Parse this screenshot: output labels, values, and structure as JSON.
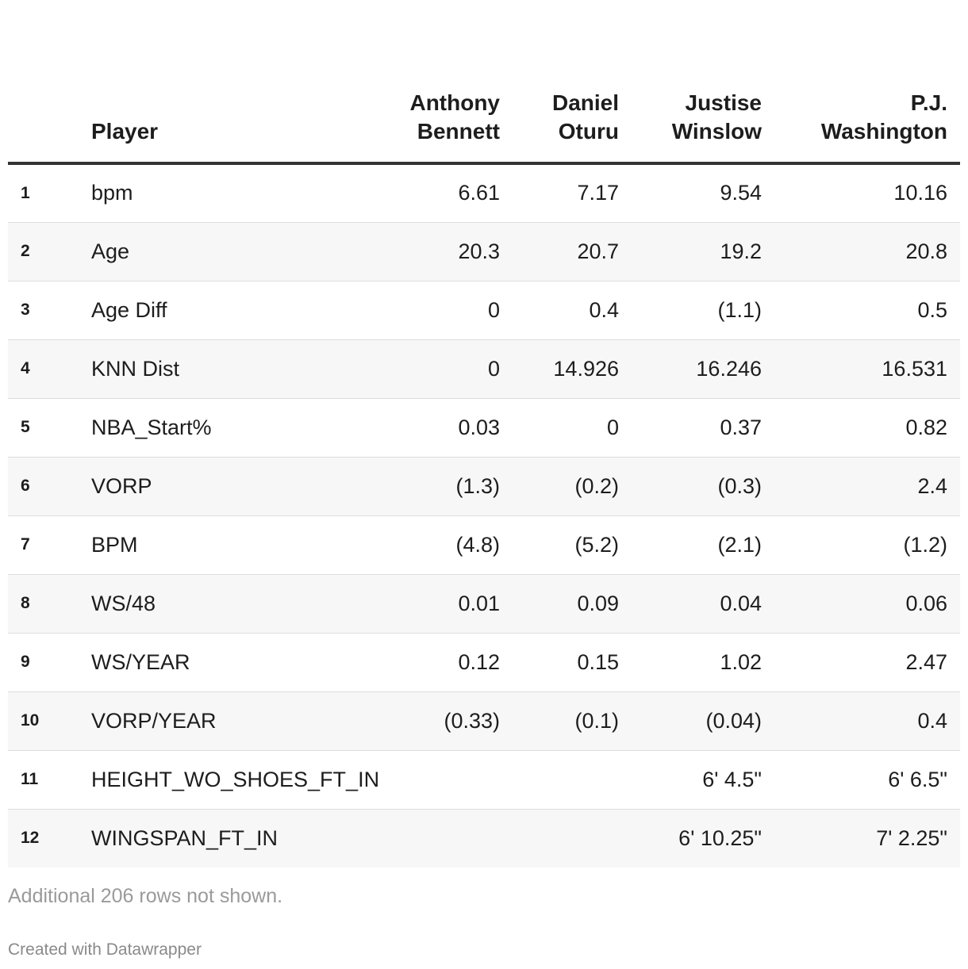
{
  "table": {
    "columns": [
      {
        "key": "idx",
        "label": ""
      },
      {
        "key": "name",
        "label": "Player"
      },
      {
        "key": "p1",
        "label": "Anthony Bennett",
        "line1": "Anthony",
        "line2": "Bennett"
      },
      {
        "key": "p2",
        "label": "Daniel Oturu",
        "line1": "Daniel",
        "line2": "Oturu"
      },
      {
        "key": "p3",
        "label": "Justise Winslow",
        "line1": "Justise",
        "line2": "Winslow"
      },
      {
        "key": "p4",
        "label": "P.J. Washington",
        "line1": "P.J.",
        "line2": "Washington"
      }
    ],
    "rows": [
      {
        "idx": "1",
        "name": "bpm",
        "p1": "6.61",
        "p2": "7.17",
        "p3": "9.54",
        "p4": "10.16"
      },
      {
        "idx": "2",
        "name": "Age",
        "p1": "20.3",
        "p2": "20.7",
        "p3": "19.2",
        "p4": "20.8"
      },
      {
        "idx": "3",
        "name": "Age Diff",
        "p1": "0",
        "p2": "0.4",
        "p3": "(1.1)",
        "p4": "0.5"
      },
      {
        "idx": "4",
        "name": "KNN Dist",
        "p1": "0",
        "p2": "14.926",
        "p3": "16.246",
        "p4": "16.531"
      },
      {
        "idx": "5",
        "name": "NBA_Start%",
        "p1": "0.03",
        "p2": "0",
        "p3": "0.37",
        "p4": "0.82"
      },
      {
        "idx": "6",
        "name": "VORP",
        "p1": "(1.3)",
        "p2": "(0.2)",
        "p3": "(0.3)",
        "p4": "2.4"
      },
      {
        "idx": "7",
        "name": "BPM",
        "p1": "(4.8)",
        "p2": "(5.2)",
        "p3": "(2.1)",
        "p4": "(1.2)"
      },
      {
        "idx": "8",
        "name": "WS/48",
        "p1": "0.01",
        "p2": "0.09",
        "p3": "0.04",
        "p4": "0.06"
      },
      {
        "idx": "9",
        "name": "WS/YEAR",
        "p1": "0.12",
        "p2": "0.15",
        "p3": "1.02",
        "p4": "2.47"
      },
      {
        "idx": "10",
        "name": "VORP/YEAR",
        "p1": "(0.33)",
        "p2": "(0.1)",
        "p3": "(0.04)",
        "p4": "0.4"
      },
      {
        "idx": "11",
        "name": "HEIGHT_WO_SHOES_FT_IN",
        "p1": "",
        "p2": "",
        "p3": "6' 4.5\"",
        "p4": "6' 6.5\""
      },
      {
        "idx": "12",
        "name": "WINGSPAN_FT_IN",
        "p1": "",
        "p2": "",
        "p3": "6' 10.25\"",
        "p4": "7' 2.25\""
      }
    ]
  },
  "notes": "Additional 206 rows not shown.",
  "credit": "Created with Datawrapper",
  "colors": {
    "header_rule": "#333333",
    "row_alt": "#f7f7f7",
    "row_divider": "#dddddd",
    "notes_text": "#9a9a9a"
  }
}
